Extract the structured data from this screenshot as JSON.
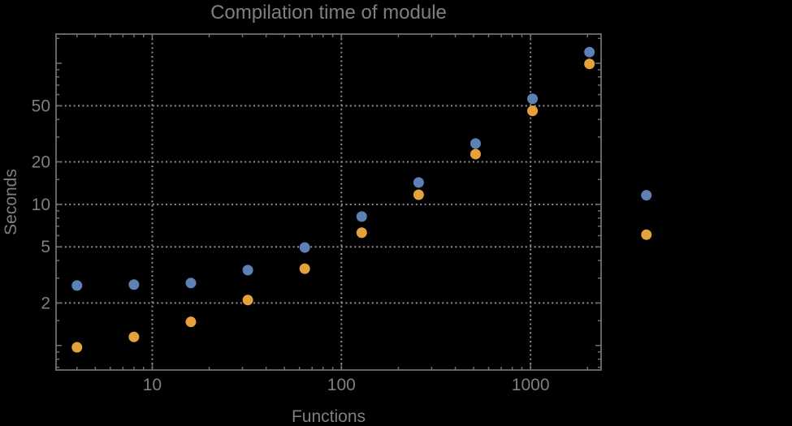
{
  "window": {
    "background": "#000000"
  },
  "chart_data": {
    "type": "scatter",
    "title": "Compilation time of module",
    "xlabel": "Functions",
    "ylabel": "Seconds",
    "x_scale": "log",
    "y_scale": "log",
    "xlim": [
      3.1,
      2360
    ],
    "ylim": [
      0.67,
      161
    ],
    "grid": true,
    "grid_style": "dotted",
    "legend": "none",
    "x_ticks": [
      {
        "value": 10,
        "label": "10"
      },
      {
        "value": 100,
        "label": "100"
      },
      {
        "value": 1000,
        "label": "1000"
      }
    ],
    "y_ticks": [
      {
        "value": 2,
        "label": "2"
      },
      {
        "value": 5,
        "label": "5"
      },
      {
        "value": 10,
        "label": "10"
      },
      {
        "value": 20,
        "label": "20"
      },
      {
        "value": 50,
        "label": "50"
      }
    ],
    "x_minor_ticks": [
      4,
      5,
      6,
      7,
      8,
      9,
      20,
      30,
      40,
      50,
      60,
      70,
      80,
      90,
      200,
      300,
      400,
      500,
      600,
      700,
      800,
      900,
      2000
    ],
    "y_minor_ticks": [
      0.7,
      0.8,
      0.9,
      1.5,
      3,
      4,
      6,
      7,
      8,
      9,
      15,
      30,
      40,
      60,
      70,
      80,
      90,
      150
    ],
    "y_unlabeled_major_ticks": [
      1,
      100
    ],
    "x": [
      4,
      8,
      16,
      32,
      64,
      128,
      256,
      512,
      1024,
      2048,
      4096
    ],
    "series": [
      {
        "name": "series-blue",
        "color": "#5e81b5",
        "y": [
          2.66,
          2.7,
          2.77,
          3.42,
          4.95,
          8.2,
          14.3,
          27,
          56,
          120,
          11.6
        ]
      },
      {
        "name": "series-orange",
        "color": "#e5a23c",
        "y": [
          0.97,
          1.15,
          1.47,
          2.1,
          3.5,
          6.3,
          11.7,
          22.7,
          46,
          99,
          6.1
        ]
      }
    ],
    "marker": {
      "shape": "circle",
      "radius": 6.5
    },
    "colors": {
      "frame": "#6f6f6f",
      "grid": "#8f8f8f",
      "text": "#7f7f7f",
      "background": "#000000"
    }
  }
}
